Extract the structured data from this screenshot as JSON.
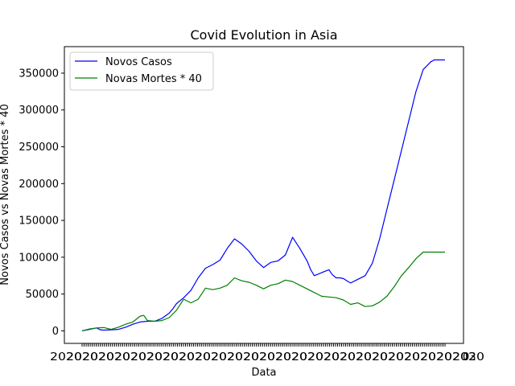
{
  "chart_data": {
    "type": "line",
    "title": "Covid Evolution in Asia",
    "xlabel": "Data",
    "ylabel": "Novos Casos vs Novas Mortes * 40",
    "ylim": [
      -17000,
      386000
    ],
    "y_ticks": [
      0,
      50000,
      100000,
      150000,
      200000,
      250000,
      300000,
      350000
    ],
    "y_tick_labels": [
      "0",
      "50000",
      "100000",
      "150000",
      "200000",
      "250000",
      "300000",
      "350000"
    ],
    "x_tick_labels_note": "dense overlapping date labels",
    "grid": false,
    "legend_position": "top-left",
    "x_range": [
      0,
      100
    ],
    "series": [
      {
        "name": "Novos Casos",
        "color": "#0000ff",
        "x": [
          0,
          2,
          4,
          5,
          6,
          8,
          10,
          12,
          14,
          16,
          18,
          20,
          22,
          24,
          25,
          26,
          28,
          30,
          32,
          34,
          36,
          38,
          40,
          42,
          44,
          46,
          48,
          50,
          52,
          54,
          56,
          58,
          60,
          62,
          63,
          64,
          66,
          68,
          69,
          70,
          71,
          72,
          73,
          74,
          76,
          78,
          80,
          82,
          84,
          86,
          88,
          90,
          92,
          94,
          95,
          96,
          97,
          98,
          99,
          100
        ],
        "y": [
          0,
          2000,
          4000,
          1500,
          1000,
          1500,
          2000,
          5000,
          9000,
          12000,
          13000,
          13000,
          17000,
          24000,
          30000,
          37000,
          45000,
          55000,
          72000,
          85000,
          90000,
          96000,
          112000,
          125000,
          118000,
          108000,
          95000,
          86000,
          93000,
          95000,
          103000,
          127000,
          112000,
          95000,
          83000,
          75000,
          79000,
          83000,
          76000,
          72000,
          72000,
          71000,
          68000,
          65000,
          70000,
          75000,
          92000,
          125000,
          165000,
          205000,
          245000,
          285000,
          325000,
          355000,
          360000,
          365000,
          368000,
          368000,
          368000,
          368000
        ]
      },
      {
        "name": "Novas Mortes * 40",
        "color": "#008000",
        "x": [
          0,
          2,
          4,
          6,
          8,
          10,
          12,
          14,
          16,
          17,
          18,
          20,
          22,
          24,
          26,
          28,
          30,
          32,
          34,
          36,
          38,
          40,
          42,
          44,
          46,
          48,
          50,
          52,
          54,
          56,
          58,
          60,
          62,
          64,
          66,
          68,
          70,
          72,
          74,
          76,
          78,
          80,
          82,
          84,
          86,
          88,
          90,
          92,
          94,
          96,
          98,
          100
        ],
        "y": [
          0,
          2500,
          4000,
          4500,
          2000,
          5000,
          9000,
          12000,
          20000,
          21000,
          14000,
          13000,
          14000,
          18000,
          28000,
          43000,
          38000,
          43000,
          58000,
          56000,
          58000,
          62000,
          72000,
          68000,
          66000,
          62000,
          57000,
          62000,
          64000,
          69000,
          67000,
          62000,
          57000,
          52000,
          47000,
          46000,
          45000,
          42000,
          36000,
          38000,
          33000,
          34000,
          39000,
          47000,
          60000,
          75000,
          86000,
          98000,
          107000,
          107000,
          107000,
          107000
        ]
      }
    ]
  }
}
